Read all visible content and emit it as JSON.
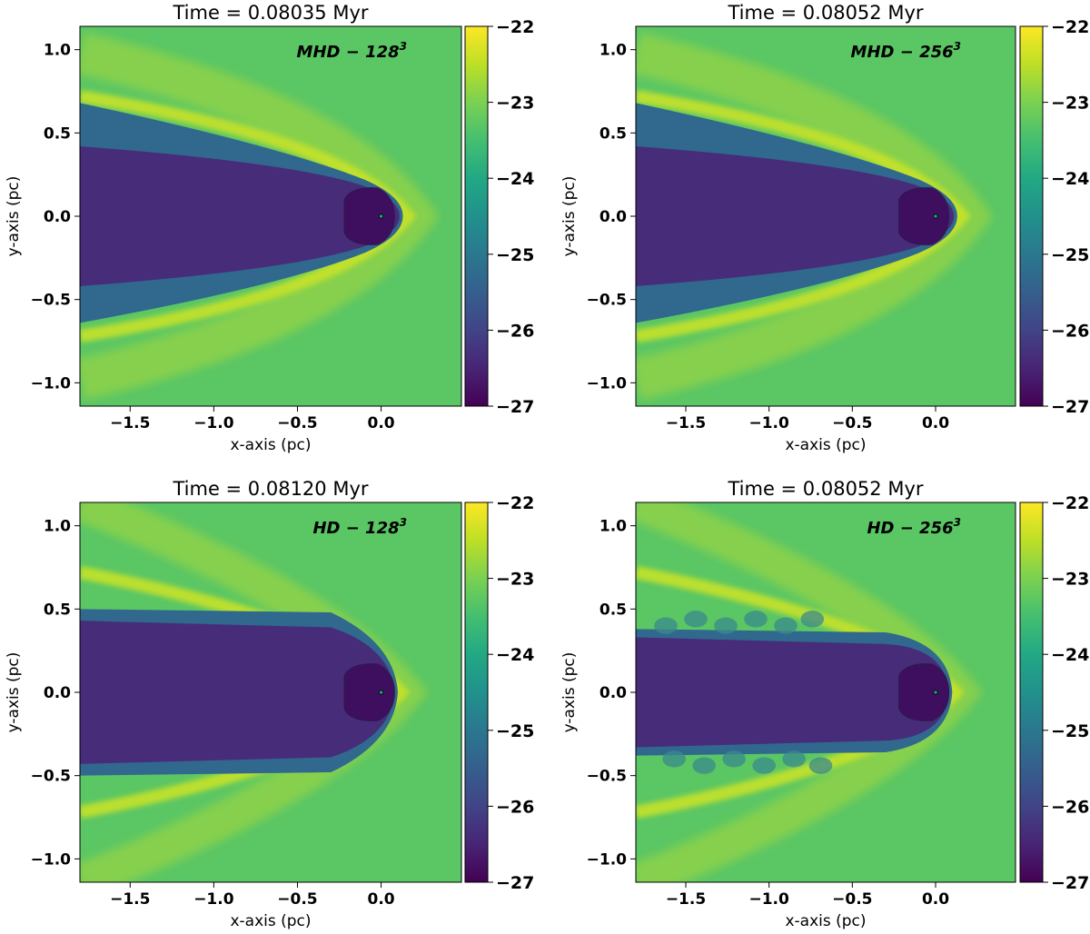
{
  "chart_data": [
    {
      "type": "heatmap",
      "title": "Time = 0.08035 Myr",
      "annotation": {
        "label": "MHD − 128",
        "superscript": "3"
      },
      "xlabel": "x-axis (pc)",
      "ylabel": "y-axis (pc)",
      "xlim": [
        -1.8,
        0.48
      ],
      "ylim": [
        -1.14,
        1.14
      ],
      "xticks": [
        -1.5,
        -1.0,
        -0.5,
        0.0
      ],
      "xtick_labels": [
        "−1.5",
        "−1.0",
        "−0.5",
        "0.0"
      ],
      "yticks": [
        1.0,
        0.5,
        0.0,
        -0.5,
        -1.0
      ],
      "ytick_labels": [
        "1.0",
        "0.5",
        "0.0",
        "−0.5",
        "−1.0"
      ],
      "colorbar": {
        "range": [
          -27,
          -22
        ],
        "ticks": [
          -22,
          -23,
          -24,
          -25,
          -26,
          -27
        ],
        "tick_labels": [
          "−22",
          "−23",
          "−24",
          "−25",
          "−26",
          "−27"
        ]
      },
      "colormap": "viridis",
      "background_value": -23.3
    },
    {
      "type": "heatmap",
      "title": "Time = 0.08052 Myr",
      "annotation": {
        "label": "MHD − 256",
        "superscript": "3"
      },
      "xlabel": "x-axis (pc)",
      "ylabel": "y-axis (pc)",
      "xlim": [
        -1.8,
        0.48
      ],
      "ylim": [
        -1.14,
        1.14
      ],
      "xticks": [
        -1.5,
        -1.0,
        -0.5,
        0.0
      ],
      "xtick_labels": [
        "−1.5",
        "−1.0",
        "−0.5",
        "0.0"
      ],
      "yticks": [
        1.0,
        0.5,
        0.0,
        -0.5,
        -1.0
      ],
      "ytick_labels": [
        "1.0",
        "0.5",
        "0.0",
        "−0.5",
        "−1.0"
      ],
      "colorbar": {
        "range": [
          -27,
          -22
        ],
        "ticks": [
          -22,
          -23,
          -24,
          -25,
          -26,
          -27
        ],
        "tick_labels": [
          "−22",
          "−23",
          "−24",
          "−25",
          "−26",
          "−27"
        ]
      },
      "colormap": "viridis",
      "background_value": -23.3
    },
    {
      "type": "heatmap",
      "title": "Time = 0.08120 Myr",
      "annotation": {
        "label": "HD − 128",
        "superscript": "3"
      },
      "xlabel": "x-axis (pc)",
      "ylabel": "y-axis (pc)",
      "xlim": [
        -1.8,
        0.48
      ],
      "ylim": [
        -1.14,
        1.14
      ],
      "xticks": [
        -1.5,
        -1.0,
        -0.5,
        0.0
      ],
      "xtick_labels": [
        "−1.5",
        "−1.0",
        "−0.5",
        "0.0"
      ],
      "yticks": [
        1.0,
        0.5,
        0.0,
        -0.5,
        -1.0
      ],
      "ytick_labels": [
        "1.0",
        "0.5",
        "0.0",
        "−0.5",
        "−1.0"
      ],
      "colorbar": {
        "range": [
          -27,
          -22
        ],
        "ticks": [
          -22,
          -23,
          -24,
          -25,
          -26,
          -27
        ],
        "tick_labels": [
          "−22",
          "−23",
          "−24",
          "−25",
          "−26",
          "−27"
        ]
      },
      "colormap": "viridis",
      "background_value": -23.3
    },
    {
      "type": "heatmap",
      "title": "Time = 0.08052 Myr",
      "annotation": {
        "label": "HD − 256",
        "superscript": "3"
      },
      "xlabel": "x-axis (pc)",
      "ylabel": "y-axis (pc)",
      "xlim": [
        -1.8,
        0.48
      ],
      "ylim": [
        -1.14,
        1.14
      ],
      "xticks": [
        -1.5,
        -1.0,
        -0.5,
        0.0
      ],
      "xtick_labels": [
        "−1.5",
        "−1.0",
        "−0.5",
        "0.0"
      ],
      "yticks": [
        1.0,
        0.5,
        0.0,
        -0.5,
        -1.0
      ],
      "ytick_labels": [
        "1.0",
        "0.5",
        "0.0",
        "−0.5",
        "−1.0"
      ],
      "colorbar": {
        "range": [
          -27,
          -22
        ],
        "ticks": [
          -22,
          -23,
          -24,
          -25,
          -26,
          -27
        ],
        "tick_labels": [
          "−22",
          "−23",
          "−24",
          "−25",
          "−26",
          "−27"
        ]
      },
      "colormap": "viridis",
      "background_value": -23.3
    }
  ]
}
